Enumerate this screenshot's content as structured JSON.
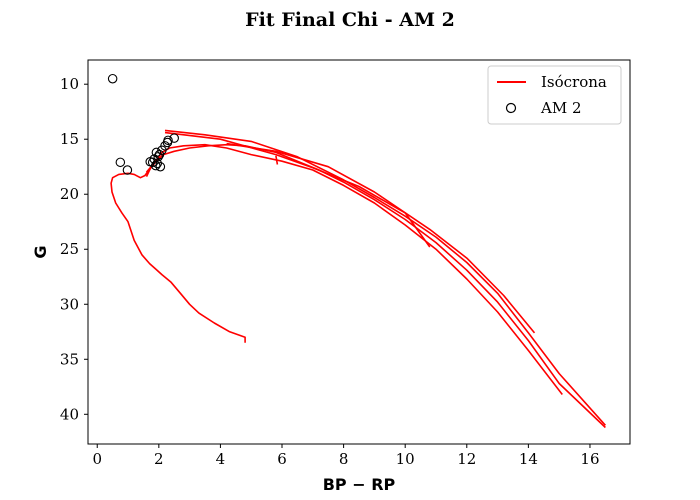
{
  "chart_data": {
    "type": "line",
    "title": "Fit Final Chi - AM 2",
    "xlabel": "BP − RP",
    "ylabel": "G",
    "xlim": [
      -0.3,
      17.3
    ],
    "ylim": [
      42.7,
      7.8
    ],
    "y_inverted": true,
    "xticks": [
      0,
      2,
      4,
      6,
      8,
      10,
      12,
      14,
      16
    ],
    "yticks": [
      10,
      15,
      20,
      25,
      30,
      35,
      40
    ],
    "grid": false,
    "legend_position": "top-right",
    "series": [
      {
        "name": "Isócrona",
        "kind": "line",
        "color": "#ff0000",
        "segments": [
          [
            [
              4.8,
              33.5
            ],
            [
              4.8,
              33.0
            ],
            [
              4.3,
              32.5
            ],
            [
              3.8,
              31.7
            ],
            [
              3.3,
              30.8
            ],
            [
              3.0,
              30.0
            ],
            [
              2.7,
              29.0
            ],
            [
              2.4,
              28.0
            ],
            [
              2.1,
              27.3
            ],
            [
              1.9,
              26.8
            ],
            [
              1.7,
              26.3
            ],
            [
              1.45,
              25.5
            ],
            [
              1.2,
              24.2
            ],
            [
              1.0,
              22.5
            ],
            [
              0.8,
              21.7
            ],
            [
              0.6,
              20.8
            ],
            [
              0.48,
              19.8
            ],
            [
              0.45,
              19.0
            ],
            [
              0.5,
              18.5
            ],
            [
              0.7,
              18.2
            ],
            [
              1.0,
              18.1
            ],
            [
              1.2,
              18.2
            ],
            [
              1.4,
              18.5
            ],
            [
              1.55,
              18.3
            ],
            [
              1.65,
              17.9
            ],
            [
              1.8,
              17.4
            ],
            [
              1.95,
              16.9
            ],
            [
              2.15,
              16.4
            ],
            [
              2.5,
              16.1
            ],
            [
              3.0,
              15.8
            ],
            [
              3.6,
              15.6
            ],
            [
              4.2,
              15.5
            ],
            [
              4.8,
              15.6
            ],
            [
              5.3,
              15.9
            ],
            [
              5.8,
              16.2
            ],
            [
              6.5,
              17.0
            ],
            [
              7.2,
              17.8
            ],
            [
              8.0,
              18.9
            ],
            [
              9.0,
              20.5
            ],
            [
              10.0,
              22.3
            ],
            [
              11.0,
              24.4
            ],
            [
              12.0,
              26.9
            ],
            [
              13.0,
              29.8
            ],
            [
              14.0,
              33.3
            ],
            [
              15.0,
              37.2
            ],
            [
              16.5,
              41.2
            ]
          ],
          [
            [
              1.6,
              18.0
            ],
            [
              1.9,
              17.0
            ],
            [
              2.1,
              16.2
            ],
            [
              2.35,
              15.8
            ],
            [
              2.8,
              15.6
            ],
            [
              3.5,
              15.5
            ],
            [
              4.2,
              15.8
            ],
            [
              5.0,
              16.4
            ],
            [
              6.0,
              17.0
            ],
            [
              7.0,
              17.8
            ],
            [
              8.0,
              19.2
            ],
            [
              9.0,
              20.8
            ],
            [
              10.0,
              22.8
            ],
            [
              11.0,
              25.0
            ],
            [
              12.0,
              27.7
            ],
            [
              13.0,
              30.7
            ],
            [
              14.0,
              34.2
            ],
            [
              15.1,
              38.2
            ]
          ],
          [
            [
              2.2,
              14.2
            ],
            [
              3.5,
              14.6
            ],
            [
              5.0,
              15.2
            ],
            [
              6.5,
              16.6
            ],
            [
              8.0,
              18.7
            ],
            [
              9.0,
              20.3
            ],
            [
              10.0,
              22.0
            ],
            [
              11.0,
              23.9
            ],
            [
              12.0,
              26.2
            ],
            [
              13.0,
              29.0
            ],
            [
              14.0,
              32.6
            ],
            [
              15.0,
              36.3
            ],
            [
              16.5,
              41.0
            ]
          ],
          [
            [
              2.2,
              14.4
            ],
            [
              4.0,
              15.0
            ],
            [
              5.8,
              16.4
            ],
            [
              7.0,
              17.6
            ],
            [
              8.5,
              19.3
            ],
            [
              10.0,
              21.7
            ],
            [
              10.8,
              24.8
            ]
          ],
          [
            [
              4.2,
              15.4
            ],
            [
              5.8,
              16.1
            ],
            [
              7.5,
              17.5
            ],
            [
              9.0,
              19.8
            ],
            [
              10.8,
              23.2
            ],
            [
              12.0,
              25.8
            ],
            [
              13.2,
              29.2
            ],
            [
              14.2,
              32.6
            ]
          ],
          [
            [
              5.8,
              16.5
            ],
            [
              5.85,
              17.3
            ]
          ],
          [
            [
              1.6,
              18.4
            ],
            [
              1.7,
              17.8
            ],
            [
              1.9,
              16.8
            ]
          ]
        ]
      },
      {
        "name": "AM 2",
        "kind": "scatter",
        "marker": "open-circle",
        "color": "#000000",
        "points": [
          [
            0.5,
            9.5
          ],
          [
            0.75,
            17.1
          ],
          [
            0.98,
            17.8
          ],
          [
            1.72,
            17.05
          ],
          [
            1.8,
            17.1
          ],
          [
            1.85,
            16.8
          ],
          [
            1.9,
            17.4
          ],
          [
            1.95,
            17.2
          ],
          [
            1.92,
            16.2
          ],
          [
            1.98,
            16.6
          ],
          [
            2.02,
            16.4
          ],
          [
            2.05,
            17.5
          ],
          [
            2.1,
            16.0
          ],
          [
            2.2,
            15.6
          ],
          [
            2.28,
            15.3
          ],
          [
            2.3,
            15.1
          ],
          [
            2.5,
            14.9
          ]
        ]
      }
    ]
  }
}
